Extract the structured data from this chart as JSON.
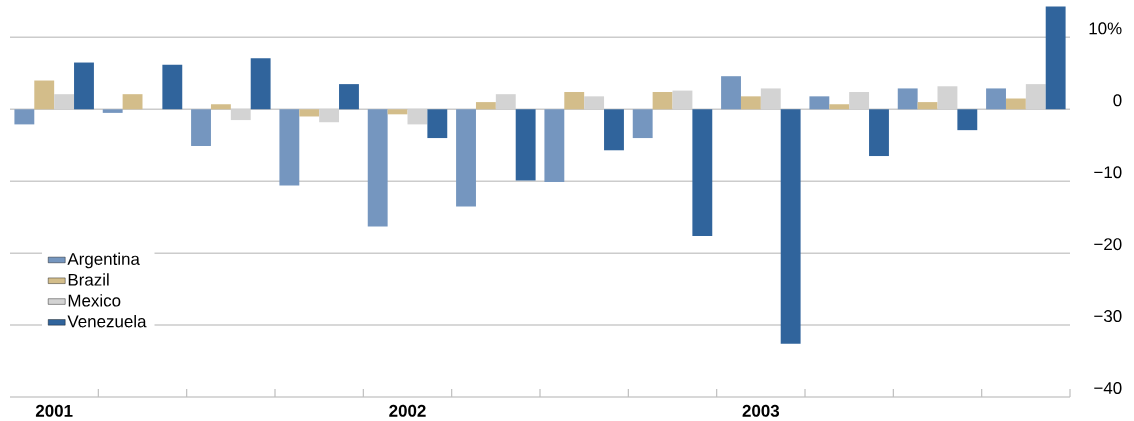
{
  "chart_data": {
    "type": "bar",
    "categories": [
      "2001",
      null,
      null,
      null,
      "2002",
      null,
      null,
      null,
      "2003",
      null,
      null,
      null
    ],
    "series": [
      {
        "name": "Argentina",
        "color": "#7596bf",
        "values": [
          -2.1,
          -0.5,
          -5.1,
          -10.6,
          -16.3,
          -13.5,
          -10.1,
          -4.0,
          4.6,
          1.8,
          2.9,
          2.9
        ]
      },
      {
        "name": "Brazil",
        "color": "#d3bd8a",
        "values": [
          4.0,
          2.1,
          0.7,
          -1.0,
          -0.7,
          1.0,
          2.4,
          2.4,
          1.8,
          0.7,
          1.0,
          1.5
        ]
      },
      {
        "name": "Mexico",
        "color": "#d3d3d3",
        "values": [
          2.1,
          0,
          -1.5,
          -1.8,
          -2.1,
          2.1,
          1.8,
          2.6,
          2.9,
          2.4,
          3.2,
          3.5
        ]
      },
      {
        "name": "Venezuela",
        "color": "#30649c",
        "values": [
          6.5,
          6.2,
          7.1,
          3.5,
          -4.0,
          -9.9,
          -5.7,
          -17.6,
          -32.6,
          -6.5,
          -2.9,
          14.3
        ]
      }
    ],
    "ylim": [
      -40,
      14.5
    ],
    "yticks": [
      {
        "value": 10,
        "label": "10%"
      },
      0,
      {
        "value": -10,
        "label": "−10"
      },
      {
        "value": -20,
        "label": "−20"
      },
      {
        "value": -30,
        "label": "−30"
      },
      {
        "value": -40,
        "label": "−40"
      }
    ],
    "grid": "y",
    "legend": "left"
  }
}
